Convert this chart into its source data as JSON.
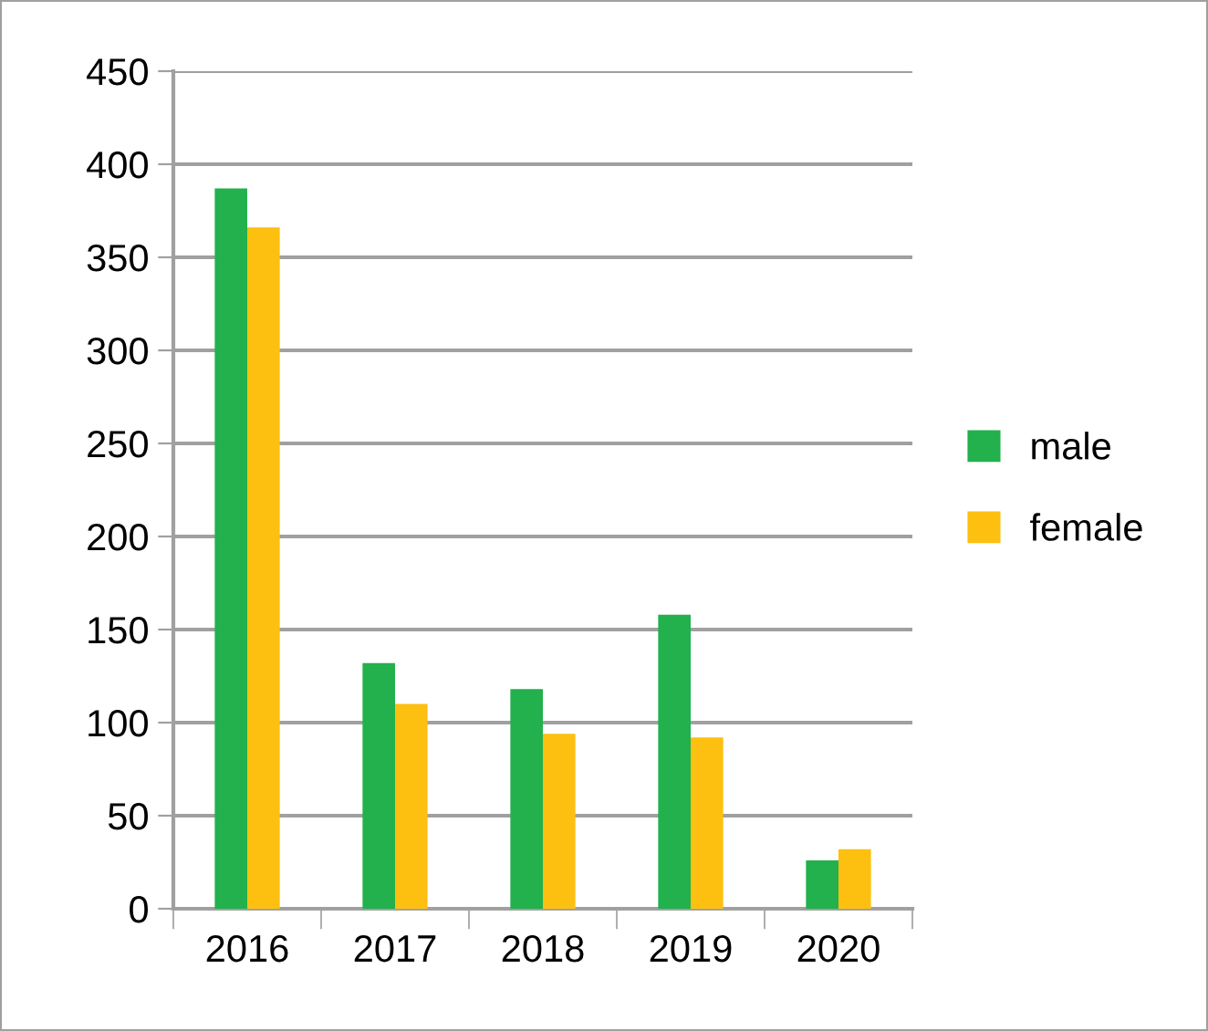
{
  "chart_data": {
    "type": "bar",
    "categories": [
      "2016",
      "2017",
      "2018",
      "2019",
      "2020"
    ],
    "series": [
      {
        "name": "male",
        "color": "#22b14c",
        "values": [
          387,
          132,
          118,
          158,
          26
        ]
      },
      {
        "name": "female",
        "color": "#fdc010",
        "values": [
          366,
          110,
          94,
          92,
          32
        ]
      }
    ],
    "ylim": [
      0,
      450
    ],
    "yticks": [
      0,
      50,
      100,
      150,
      200,
      250,
      300,
      350,
      400,
      450
    ],
    "grid": "y",
    "legend": "right"
  }
}
